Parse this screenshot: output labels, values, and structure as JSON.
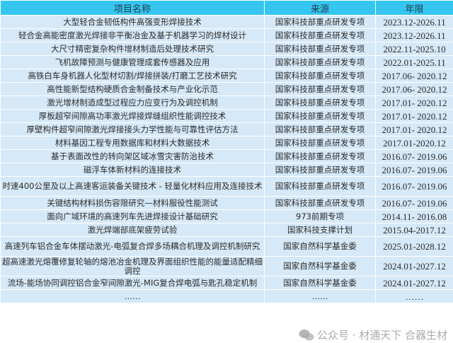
{
  "headers": [
    "项目名称",
    "来源",
    "年限"
  ],
  "rows": [
    {
      "name": "大型轻合金韧低构件高强变形焊接技术",
      "source": "国家科技部重点研发专项",
      "period": "2023.12-2026.11"
    },
    {
      "name": "轻合金高能密度激光焊接非平衡冶金及基于机器学习的焊材设计",
      "source": "国家科技部重点研发专项",
      "period": "2023.12-2026.11"
    },
    {
      "name": "大尺寸精密复杂构件增材制造后处理技术研究",
      "source": "国家科技部重点研发专项",
      "period": "2022.11-2025.10"
    },
    {
      "name": "飞机故障预测与健康管理成套传感器及应用",
      "source": "国家科技部重点研发专项",
      "period": "2022.01-2025.11"
    },
    {
      "name": "高铁白车身机器人化型材切割/焊接拼装/打磨工艺技术研究",
      "source": "国家科技部重点研发专项",
      "period": "2017.06- 2020.12"
    },
    {
      "name": "高性能新型结构硬质合金制备技术与产业化示范",
      "source": "国家科技部重点研发专项",
      "period": "2017.06- 2020.12"
    },
    {
      "name": "激光增材制造成型过程应力应变行为及调控机制",
      "source": "国家科技部重点研发专项",
      "period": "2017.01- 2020.12"
    },
    {
      "name": "厚板超窄间隙高功率激光焊接焊缝组织性能调控技术",
      "source": "国家科技部重点研发专项",
      "period": "2017.01- 2020.12"
    },
    {
      "name": "厚壁构件超窄间隙激光焊接接头力学性能与可靠性评估方法",
      "source": "国家科技部重点研发专项",
      "period": "2017.01- 2020.12"
    },
    {
      "name": "材料基因工程专用数据库和材料大数据技术",
      "source": "国家科技部重点研发专项",
      "period": "2017.01-2020.12"
    },
    {
      "name": "基于表面改性的转向架区域冰雪灾害防治技术",
      "source": "国家科技部重点研发专项",
      "period": "2016.07- 2019.06"
    },
    {
      "name": "磁浮车体新材料的连接技术",
      "source": "国家科技部重点研发专项",
      "period": "2016.07- 2019.06"
    },
    {
      "name": "时速400公里及以上高速客运装备关键技术 - 轻量化材料应用及连接技术",
      "source": "国家科技部重点研发专项",
      "period": "2016.07- 2019.06",
      "tall": true
    },
    {
      "name": "关键结构材料损伤容限研究—材料服役性能测试",
      "source": "国家科技部重点研发专项",
      "period": "2016.07- 2019.06"
    },
    {
      "name": "面向广域环境的高速列车先进焊接设计基础研究",
      "source": "973前期专项",
      "period": "2014.11- 2016.08"
    },
    {
      "name": "激光焊端部底架疲劳试验",
      "source": "国家科技支撑计划",
      "period": "2015.04-2017.12"
    },
    {
      "name": "高速列车铝合金车体摆动激光-电弧复合焊多场耦合机理及调控机制研究",
      "source": "国家自然科学基金委",
      "period": "2025.01-2028.12",
      "tall": true
    },
    {
      "name": "超高速激光熔覆修复轮轴的熔池冶金机理及界面组织性能的能量适配精细调控",
      "source": "国家自然科学基金委",
      "period": "2024.01-2027.12",
      "tall": true
    },
    {
      "name": "流场-能场协同调控铝合金窄间隙激光-MIG复合焊电弧与匙孔稳定机制",
      "source": "国家自然科学基金委",
      "period": "2024.01-2027.12"
    },
    {
      "name": "……",
      "source": "……",
      "period": "……"
    }
  ],
  "watermark": "公众号 · 材通天下 合器生材",
  "colors": {
    "header": "#35c6f0",
    "row": "#d6e9f8"
  }
}
